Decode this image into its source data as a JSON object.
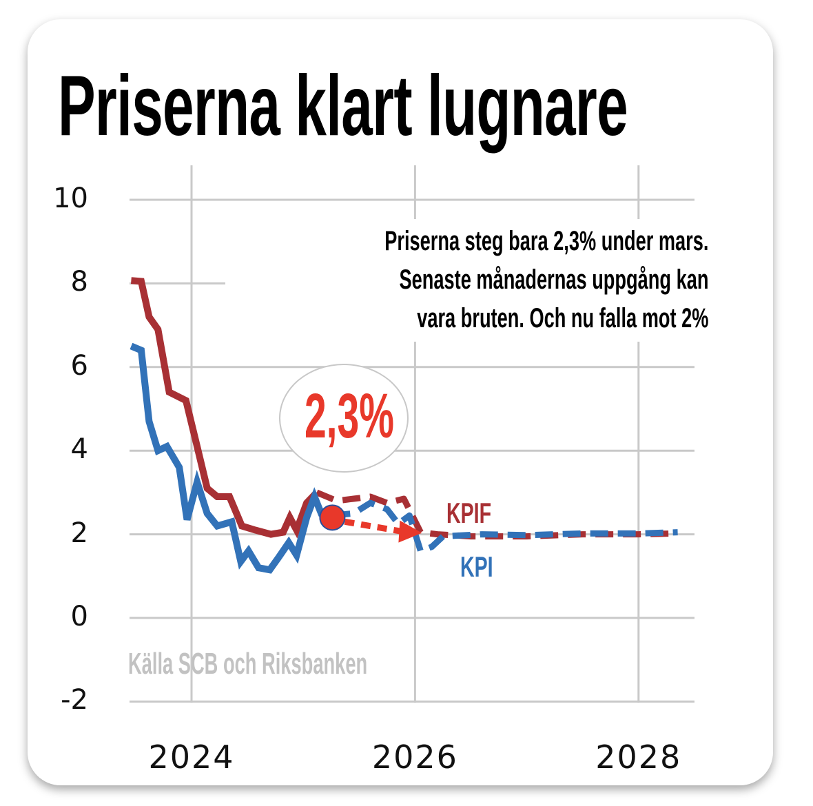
{
  "chart_data": {
    "type": "line",
    "title": "Priserna klart lugnare",
    "annotation_lines": [
      "Priserna steg bara 2,3% under mars.",
      "Senaste månadernas uppgång kan",
      "vara bruten. Och nu falla mot 2%"
    ],
    "callout": "2,3%",
    "source": "Källa SCB och Riksbanken",
    "xlabel": "",
    "ylabel": "",
    "xlim": [
      2023.45,
      2028.5
    ],
    "ylim": [
      -2,
      10
    ],
    "yticks": [
      "10",
      "8",
      "6",
      "4",
      "2",
      "0",
      "-2"
    ],
    "ytick_values": [
      10,
      8,
      6,
      4,
      2,
      0,
      -2
    ],
    "xticks": [
      "2024",
      "2026",
      "2028"
    ],
    "xtick_values": [
      2024,
      2026,
      2028
    ],
    "grid": true,
    "series": [
      {
        "name": "KPIF",
        "color": "#a83034",
        "actual": [
          [
            2023.46,
            8.07
          ],
          [
            2023.55,
            8.05
          ],
          [
            2023.62,
            7.2
          ],
          [
            2023.7,
            6.9
          ],
          [
            2023.8,
            5.4
          ],
          [
            2023.95,
            5.2
          ],
          [
            2024.05,
            4.1
          ],
          [
            2024.14,
            3.1
          ],
          [
            2024.23,
            2.9
          ],
          [
            2024.34,
            2.9
          ],
          [
            2024.45,
            2.2
          ],
          [
            2024.57,
            2.1
          ],
          [
            2024.71,
            2.0
          ],
          [
            2024.82,
            2.05
          ],
          [
            2024.88,
            2.4
          ],
          [
            2024.94,
            2.1
          ],
          [
            2025.03,
            2.75
          ],
          [
            2025.12,
            3.0
          ]
        ],
        "forecast": [
          [
            2025.12,
            3.0
          ],
          [
            2025.3,
            2.8
          ],
          [
            2025.45,
            2.85
          ],
          [
            2025.6,
            2.9
          ],
          [
            2025.75,
            2.75
          ],
          [
            2025.9,
            2.85
          ],
          [
            2026.05,
            2.05
          ],
          [
            2026.2,
            2.0
          ],
          [
            2026.5,
            1.95
          ],
          [
            2027.0,
            1.95
          ],
          [
            2027.5,
            2.0
          ],
          [
            2028.0,
            2.0
          ],
          [
            2028.35,
            2.02
          ]
        ]
      },
      {
        "name": "KPI",
        "color": "#3272b8",
        "actual": [
          [
            2023.46,
            6.5
          ],
          [
            2023.55,
            6.4
          ],
          [
            2023.62,
            4.7
          ],
          [
            2023.7,
            4.0
          ],
          [
            2023.78,
            4.1
          ],
          [
            2023.89,
            3.6
          ],
          [
            2023.96,
            2.35
          ],
          [
            2024.05,
            3.25
          ],
          [
            2024.14,
            2.5
          ],
          [
            2024.23,
            2.2
          ],
          [
            2024.36,
            2.3
          ],
          [
            2024.44,
            1.35
          ],
          [
            2024.51,
            1.6
          ],
          [
            2024.6,
            1.2
          ],
          [
            2024.7,
            1.15
          ],
          [
            2024.78,
            1.45
          ],
          [
            2024.87,
            1.8
          ],
          [
            2024.94,
            1.5
          ],
          [
            2025.03,
            2.4
          ],
          [
            2025.1,
            2.9
          ],
          [
            2025.16,
            2.5
          ],
          [
            2025.26,
            2.45
          ]
        ],
        "forecast": [
          [
            2025.26,
            2.45
          ],
          [
            2025.45,
            2.5
          ],
          [
            2025.6,
            2.75
          ],
          [
            2025.75,
            2.6
          ],
          [
            2025.85,
            2.25
          ],
          [
            2025.95,
            2.45
          ],
          [
            2026.05,
            1.6
          ],
          [
            2026.15,
            1.7
          ],
          [
            2026.25,
            1.95
          ],
          [
            2026.6,
            2.0
          ],
          [
            2027.0,
            1.98
          ],
          [
            2027.5,
            2.02
          ],
          [
            2028.0,
            2.02
          ],
          [
            2028.35,
            2.05
          ]
        ]
      }
    ],
    "highlight_point": [
      2025.26,
      2.4
    ],
    "arrow_to": [
      2026.0,
      2.0
    ],
    "highlight_color": "#e8382a"
  }
}
